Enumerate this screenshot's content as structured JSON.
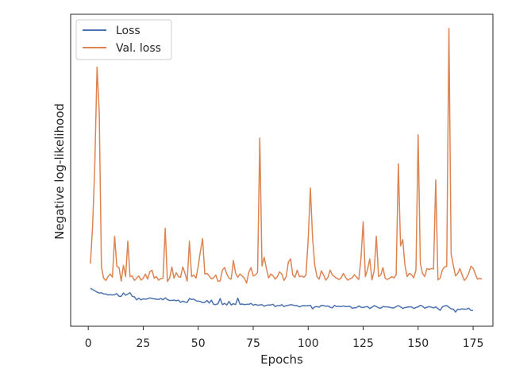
{
  "chart_data": {
    "type": "line",
    "xlabel": "Epochs",
    "ylabel": "Negative log-likelihood",
    "xlim": [
      -8,
      184
    ],
    "x_ticks": [
      0,
      25,
      50,
      75,
      100,
      125,
      150,
      175
    ],
    "y_ticks_shown": false,
    "legend_position": "top-left",
    "grid": false,
    "series": [
      {
        "name": "Loss",
        "color": "#4c72b0",
        "x_start": 1,
        "values": [
          1.74,
          1.7,
          1.66,
          1.62,
          1.59,
          1.6,
          1.56,
          1.56,
          1.53,
          1.54,
          1.53,
          1.54,
          1.57,
          1.49,
          1.49,
          1.59,
          1.52,
          1.56,
          1.6,
          1.49,
          1.47,
          1.38,
          1.43,
          1.38,
          1.41,
          1.4,
          1.41,
          1.44,
          1.42,
          1.41,
          1.4,
          1.39,
          1.42,
          1.38,
          1.44,
          1.39,
          1.36,
          1.36,
          1.37,
          1.35,
          1.37,
          1.3,
          1.34,
          1.31,
          1.3,
          1.42,
          1.39,
          1.4,
          1.35,
          1.34,
          1.33,
          1.29,
          1.3,
          1.36,
          1.28,
          1.37,
          1.24,
          1.23,
          1.26,
          1.42,
          1.23,
          1.27,
          1.22,
          1.33,
          1.22,
          1.26,
          1.23,
          1.43,
          1.24,
          1.25,
          1.23,
          1.24,
          1.24,
          1.27,
          1.21,
          1.24,
          1.21,
          1.22,
          1.23,
          1.18,
          1.21,
          1.22,
          1.22,
          1.24,
          1.17,
          1.2,
          1.2,
          1.23,
          1.17,
          1.2,
          1.21,
          1.23,
          1.22,
          1.2,
          1.2,
          1.16,
          1.19,
          1.2,
          1.19,
          1.2,
          1.21,
          1.1,
          1.16,
          1.17,
          1.15,
          1.21,
          1.2,
          1.18,
          1.19,
          1.15,
          1.13,
          1.21,
          1.17,
          1.18,
          1.17,
          1.19,
          1.17,
          1.17,
          1.18,
          1.12,
          1.13,
          1.14,
          1.19,
          1.15,
          1.14,
          1.16,
          1.17,
          1.11,
          1.15,
          1.2,
          1.17,
          1.13,
          1.12,
          1.17,
          1.16,
          1.16,
          1.15,
          1.13,
          1.13,
          1.17,
          1.2,
          1.16,
          1.11,
          1.14,
          1.15,
          1.16,
          1.16,
          1.11,
          1.14,
          1.16,
          1.21,
          1.18,
          1.12,
          1.15,
          1.17,
          1.15,
          1.13,
          1.16,
          1.11,
          1.05,
          1.16,
          1.19,
          1.2,
          1.15,
          1.1,
          1.09,
          1.0,
          1.09,
          1.08,
          1.1,
          1.09,
          1.09,
          1.12,
          1.05,
          1.05
        ]
      },
      {
        "name": "Val. loss",
        "color": "#dd8452",
        "x_start": 1,
        "values": [
          2.5,
          3.7,
          5.6,
          8.6,
          7.2,
          2.4,
          2.05,
          1.98,
          2.1,
          2.18,
          2.08,
          3.35,
          2.42,
          2.38,
          1.96,
          2.45,
          2.1,
          3.2,
          2.1,
          2.12,
          1.98,
          2.05,
          2.12,
          1.99,
          2.05,
          2.18,
          2.02,
          2.25,
          2.3,
          2.05,
          2.1,
          1.99,
          2.04,
          2.05,
          3.6,
          1.95,
          2.05,
          2.4,
          2.05,
          2.22,
          2.1,
          2.08,
          2.4,
          2.2,
          1.96,
          3.2,
          2.1,
          2.15,
          2.05,
          2.42,
          2.89,
          3.28,
          2.18,
          2.2,
          2.12,
          2.03,
          2.06,
          2.15,
          1.95,
          1.97,
          2.3,
          2.38,
          2.18,
          2.05,
          2.02,
          2.6,
          2.2,
          2.08,
          2.18,
          2.12,
          2.05,
          1.9,
          2.23,
          2.38,
          2.12,
          2.15,
          2.23,
          6.4,
          2.43,
          2.7,
          2.35,
          2.06,
          2.18,
          2.13,
          2.02,
          2.1,
          2.25,
          2.18,
          1.98,
          2.1,
          2.55,
          2.65,
          2.15,
          2.08,
          2.3,
          2.1,
          2.12,
          2.08,
          2.15,
          3.25,
          4.85,
          3.3,
          2.45,
          2.1,
          2.02,
          2.28,
          2.15,
          1.99,
          2.08,
          2.3,
          2.15,
          2.1,
          2.05,
          2.01,
          2.06,
          2.2,
          2.08,
          1.99,
          2.03,
          2.06,
          2.16,
          2.08,
          2.01,
          2.65,
          3.8,
          2.1,
          2.32,
          2.65,
          2.0,
          2.28,
          3.35,
          2.1,
          2.15,
          2.38,
          2.05,
          2.01,
          2.05,
          2.1,
          2.06,
          2.15,
          5.6,
          3.05,
          3.25,
          2.45,
          2.1,
          2.2,
          2.16,
          2.06,
          2.3,
          6.5,
          2.5,
          2.2,
          2.1,
          2.35,
          2.32,
          2.35,
          2.34,
          5.1,
          2.0,
          2.05,
          2.3,
          2.4,
          2.42,
          9.8,
          2.8,
          2.45,
          2.12,
          2.2,
          2.35,
          2.15,
          1.98,
          2.06,
          2.2,
          2.42,
          2.36,
          2.18,
          2.02,
          2.05,
          2.02
        ]
      }
    ]
  }
}
